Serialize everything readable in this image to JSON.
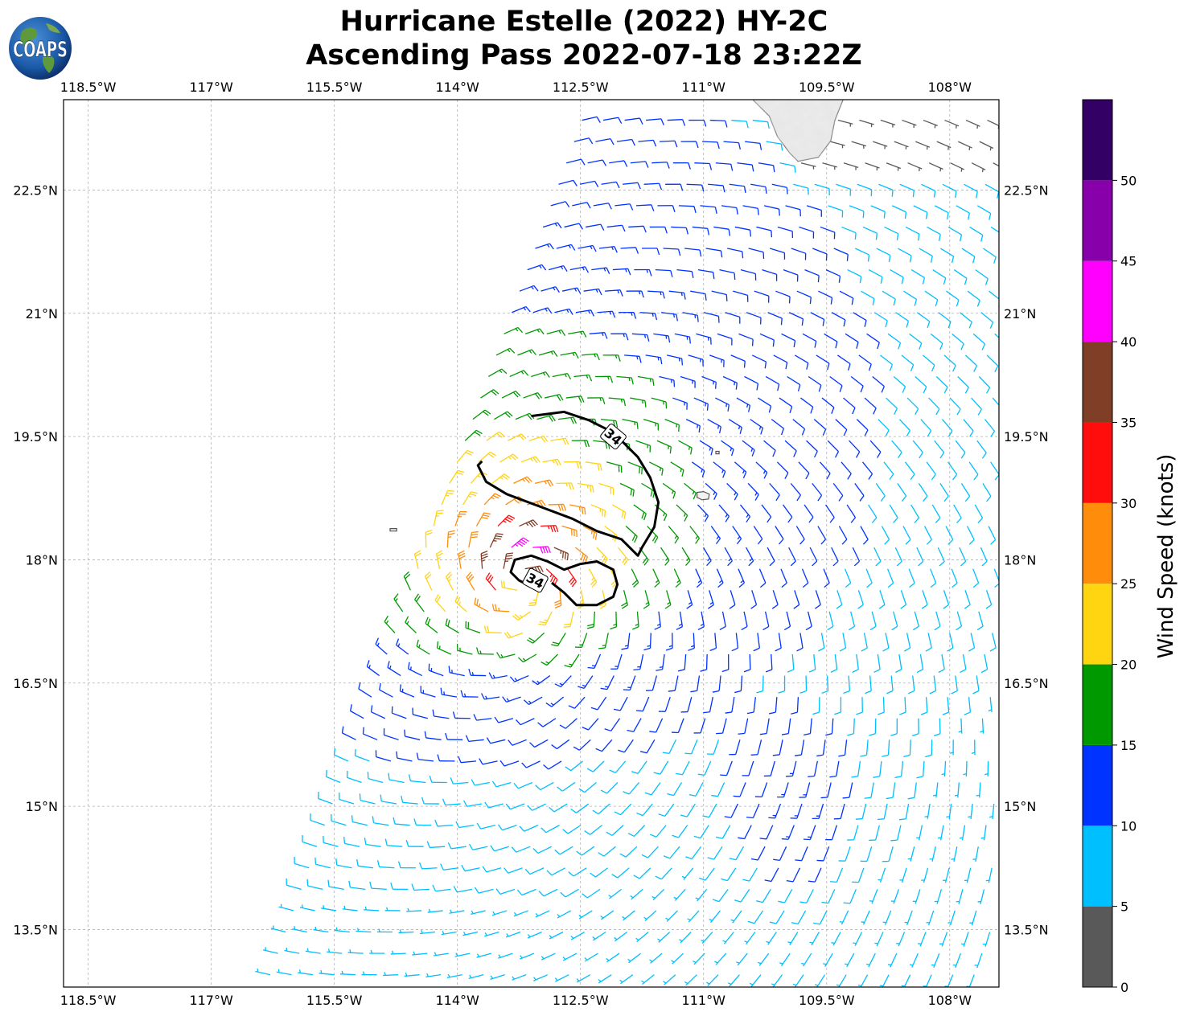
{
  "title": {
    "line1": "Hurricane Estelle (2022) HY-2C",
    "line2": "Ascending Pass 2022-07-18 23:22Z"
  },
  "logo": {
    "text": "COAPS",
    "icon": "globe-icon"
  },
  "map": {
    "lon_range": [
      -118.8,
      -107.4
    ],
    "lat_range": [
      12.8,
      23.6
    ],
    "lon_ticks": [
      {
        "value": -118.5,
        "label": "118.5°W"
      },
      {
        "value": -117.0,
        "label": "117°W"
      },
      {
        "value": -115.5,
        "label": "115.5°W"
      },
      {
        "value": -114.0,
        "label": "114°W"
      },
      {
        "value": -112.5,
        "label": "112.5°W"
      },
      {
        "value": -111.0,
        "label": "111°W"
      },
      {
        "value": -109.5,
        "label": "109.5°W"
      },
      {
        "value": -108.0,
        "label": "108°W"
      }
    ],
    "lat_ticks": [
      {
        "value": 22.5,
        "label": "22.5°N"
      },
      {
        "value": 21.0,
        "label": "21°N"
      },
      {
        "value": 19.5,
        "label": "19.5°N"
      },
      {
        "value": 18.0,
        "label": "18°N"
      },
      {
        "value": 16.5,
        "label": "16.5°N"
      },
      {
        "value": 15.0,
        "label": "15°N"
      },
      {
        "value": 13.5,
        "label": "13.5°N"
      }
    ],
    "grid": true,
    "storm_center": {
      "lon": -113.2,
      "lat": 17.75
    },
    "radius_of_max_wind_deg": 0.45,
    "swath": {
      "near_top": {
        "lon": -112.5,
        "lat": 23.3
      },
      "near_bottom": {
        "lon": -116.3,
        "lat": 12.9
      }
    },
    "land": [
      {
        "name": "Baja California Sur",
        "lonlat": [
          [
            -110.4,
            23.6
          ],
          [
            -110.2,
            23.4
          ],
          [
            -110.1,
            23.15
          ],
          [
            -109.95,
            22.95
          ],
          [
            -109.85,
            22.85
          ],
          [
            -109.6,
            22.9
          ],
          [
            -109.45,
            23.1
          ],
          [
            -109.4,
            23.35
          ],
          [
            -109.3,
            23.6
          ]
        ]
      },
      {
        "name": "Isla Socorro",
        "lonlat": [
          [
            -111.08,
            18.82
          ],
          [
            -111.0,
            18.83
          ],
          [
            -110.93,
            18.8
          ],
          [
            -110.94,
            18.74
          ],
          [
            -111.02,
            18.73
          ],
          [
            -111.08,
            18.76
          ]
        ]
      },
      {
        "name": "Isla San Benedicto",
        "lonlat": [
          [
            -110.85,
            19.32
          ],
          [
            -110.81,
            19.32
          ],
          [
            -110.81,
            19.29
          ],
          [
            -110.85,
            19.29
          ]
        ]
      },
      {
        "name": "Isla Clarion",
        "lonlat": [
          [
            -114.82,
            18.38
          ],
          [
            -114.74,
            18.38
          ],
          [
            -114.74,
            18.35
          ],
          [
            -114.82,
            18.35
          ]
        ]
      }
    ],
    "wind_34kt_contours": [
      {
        "label": "34",
        "label_at": {
          "lon": -112.1,
          "lat": 19.5
        },
        "lonlat": [
          [
            -113.1,
            19.75
          ],
          [
            -112.7,
            19.8
          ],
          [
            -112.4,
            19.7
          ],
          [
            -112.1,
            19.55
          ],
          [
            -111.8,
            19.25
          ],
          [
            -111.65,
            19.0
          ],
          [
            -111.55,
            18.7
          ],
          [
            -111.6,
            18.4
          ],
          [
            -111.75,
            18.15
          ],
          [
            -111.8,
            18.05
          ],
          [
            -112.0,
            18.25
          ],
          [
            -112.3,
            18.35
          ],
          [
            -112.6,
            18.5
          ],
          [
            -113.0,
            18.65
          ],
          [
            -113.4,
            18.8
          ],
          [
            -113.65,
            18.95
          ],
          [
            -113.75,
            19.15
          ],
          [
            -113.7,
            19.2
          ]
        ]
      },
      {
        "label": "34",
        "label_at": {
          "lon": -113.05,
          "lat": 17.75
        },
        "lonlat": [
          [
            -112.85,
            17.72
          ],
          [
            -112.7,
            17.6
          ],
          [
            -112.55,
            17.45
          ],
          [
            -112.3,
            17.45
          ],
          [
            -112.1,
            17.55
          ],
          [
            -112.05,
            17.7
          ],
          [
            -112.1,
            17.88
          ],
          [
            -112.3,
            17.98
          ],
          [
            -112.5,
            17.95
          ],
          [
            -112.7,
            17.88
          ],
          [
            -112.9,
            17.98
          ],
          [
            -113.1,
            18.05
          ],
          [
            -113.3,
            18.0
          ],
          [
            -113.35,
            17.85
          ],
          [
            -113.25,
            17.75
          ],
          [
            -113.15,
            17.7
          ]
        ]
      }
    ]
  },
  "colorbar": {
    "label": "Wind Speed (knots)",
    "min": 0,
    "max": 55,
    "ticks": [
      0,
      5,
      10,
      15,
      20,
      25,
      30,
      35,
      40,
      45,
      50
    ],
    "bins": [
      {
        "min": 0,
        "max": 5,
        "color": "#595959"
      },
      {
        "min": 5,
        "max": 10,
        "color": "#00bfff"
      },
      {
        "min": 10,
        "max": 15,
        "color": "#0033ff"
      },
      {
        "min": 15,
        "max": 20,
        "color": "#009900"
      },
      {
        "min": 20,
        "max": 25,
        "color": "#ffd411"
      },
      {
        "min": 25,
        "max": 30,
        "color": "#ff8c0a"
      },
      {
        "min": 30,
        "max": 35,
        "color": "#ff0d0d"
      },
      {
        "min": 35,
        "max": 40,
        "color": "#803e26"
      },
      {
        "min": 40,
        "max": 45,
        "color": "#ff00ff"
      },
      {
        "min": 45,
        "max": 50,
        "color": "#8800aa"
      },
      {
        "min": 50,
        "max": 55,
        "color": "#330066"
      }
    ]
  }
}
